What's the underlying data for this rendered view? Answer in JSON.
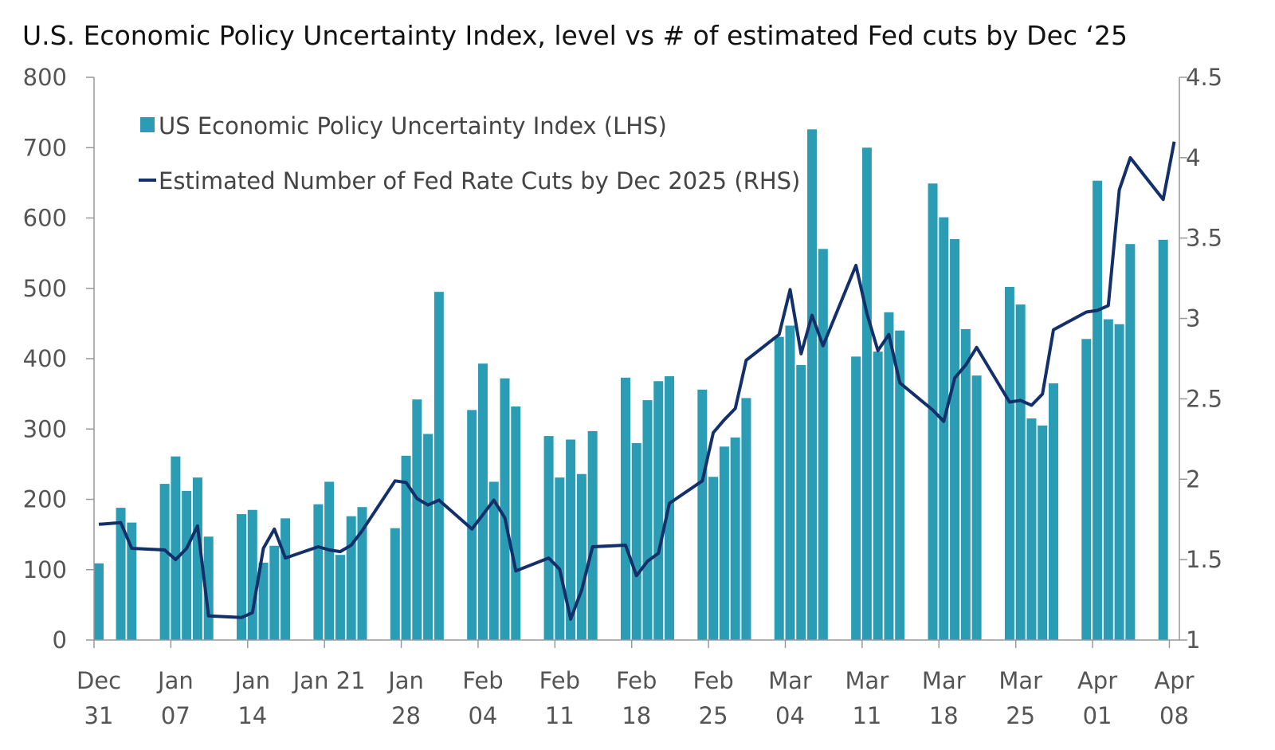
{
  "chart_data": {
    "type": "bar+line",
    "title": "U.S. Economic Policy Uncertainty Index, level vs # of estimated Fed cuts by Dec ‘25",
    "left_axis": {
      "ylim": [
        0,
        800
      ],
      "ticks": [
        "0",
        "100",
        "200",
        "300",
        "400",
        "500",
        "600",
        "700",
        "800"
      ]
    },
    "right_axis": {
      "ylim": [
        1,
        4.5
      ],
      "ticks": [
        "1",
        "1.5",
        "2",
        "2.5",
        "3",
        "3.5",
        "4",
        "4.5"
      ]
    },
    "x_ticks": [
      {
        "date": "2024-12-31",
        "lines": [
          "Dec",
          "31"
        ]
      },
      {
        "date": "2025-01-07",
        "lines": [
          "Jan",
          "07"
        ]
      },
      {
        "date": "2025-01-14",
        "lines": [
          "Jan",
          "14"
        ]
      },
      {
        "date": "2025-01-21",
        "lines": [
          "Jan 21",
          ""
        ]
      },
      {
        "date": "2025-01-28",
        "lines": [
          "Jan",
          "28"
        ]
      },
      {
        "date": "2025-02-04",
        "lines": [
          "Feb",
          "04"
        ]
      },
      {
        "date": "2025-02-11",
        "lines": [
          "Feb",
          "11"
        ]
      },
      {
        "date": "2025-02-18",
        "lines": [
          "Feb",
          "18"
        ]
      },
      {
        "date": "2025-02-25",
        "lines": [
          "Feb",
          "25"
        ]
      },
      {
        "date": "2025-03-04",
        "lines": [
          "Mar",
          "04"
        ]
      },
      {
        "date": "2025-03-11",
        "lines": [
          "Mar",
          "11"
        ]
      },
      {
        "date": "2025-03-18",
        "lines": [
          "Mar",
          "18"
        ]
      },
      {
        "date": "2025-03-25",
        "lines": [
          "Mar",
          "25"
        ]
      },
      {
        "date": "2025-04-01",
        "lines": [
          "Apr",
          "01"
        ]
      },
      {
        "date": "2025-04-08",
        "lines": [
          "Apr",
          "08"
        ]
      }
    ],
    "legend": {
      "bars": "US Economic Policy Uncertainty Index (LHS)",
      "line": "Estimated Number of Fed Rate Cuts by Dec 2025 (RHS)",
      "placement": "top-left"
    },
    "colors": {
      "bars": "#2a9db5",
      "line": "#13306b",
      "axis": "#999999"
    },
    "grid": false,
    "bars_series": {
      "name": "US Economic Policy Uncertainty Index (LHS)",
      "points": [
        [
          "2024-12-31",
          109
        ],
        [
          "2025-01-02",
          188
        ],
        [
          "2025-01-03",
          167
        ],
        [
          "2025-01-06",
          222
        ],
        [
          "2025-01-07",
          261
        ],
        [
          "2025-01-08",
          212
        ],
        [
          "2025-01-09",
          231
        ],
        [
          "2025-01-10",
          147
        ],
        [
          "2025-01-13",
          179
        ],
        [
          "2025-01-14",
          185
        ],
        [
          "2025-01-15",
          110
        ],
        [
          "2025-01-16",
          134
        ],
        [
          "2025-01-17",
          173
        ],
        [
          "2025-01-20",
          193
        ],
        [
          "2025-01-21",
          225
        ],
        [
          "2025-01-22",
          121
        ],
        [
          "2025-01-23",
          176
        ],
        [
          "2025-01-24",
          189
        ],
        [
          "2025-01-27",
          159
        ],
        [
          "2025-01-28",
          262
        ],
        [
          "2025-01-29",
          342
        ],
        [
          "2025-01-30",
          293
        ],
        [
          "2025-01-31",
          495
        ],
        [
          "2025-02-03",
          327
        ],
        [
          "2025-02-04",
          393
        ],
        [
          "2025-02-05",
          225
        ],
        [
          "2025-02-06",
          372
        ],
        [
          "2025-02-07",
          332
        ],
        [
          "2025-02-10",
          290
        ],
        [
          "2025-02-11",
          231
        ],
        [
          "2025-02-12",
          285
        ],
        [
          "2025-02-13",
          236
        ],
        [
          "2025-02-14",
          297
        ],
        [
          "2025-02-17",
          373
        ],
        [
          "2025-02-18",
          280
        ],
        [
          "2025-02-19",
          341
        ],
        [
          "2025-02-20",
          368
        ],
        [
          "2025-02-21",
          375
        ],
        [
          "2025-02-24",
          356
        ],
        [
          "2025-02-25",
          232
        ],
        [
          "2025-02-26",
          275
        ],
        [
          "2025-02-27",
          288
        ],
        [
          "2025-02-28",
          344
        ],
        [
          "2025-03-03",
          431
        ],
        [
          "2025-03-04",
          447
        ],
        [
          "2025-03-05",
          391
        ],
        [
          "2025-03-06",
          726
        ],
        [
          "2025-03-07",
          556
        ],
        [
          "2025-03-10",
          403
        ],
        [
          "2025-03-11",
          700
        ],
        [
          "2025-03-12",
          410
        ],
        [
          "2025-03-13",
          466
        ],
        [
          "2025-03-14",
          440
        ],
        [
          "2025-03-17",
          649
        ],
        [
          "2025-03-18",
          601
        ],
        [
          "2025-03-19",
          570
        ],
        [
          "2025-03-20",
          442
        ],
        [
          "2025-03-21",
          376
        ],
        [
          "2025-03-24",
          502
        ],
        [
          "2025-03-25",
          477
        ],
        [
          "2025-03-26",
          315
        ],
        [
          "2025-03-27",
          305
        ],
        [
          "2025-03-28",
          365
        ],
        [
          "2025-03-31",
          428
        ],
        [
          "2025-04-01",
          653
        ],
        [
          "2025-04-02",
          456
        ],
        [
          "2025-04-03",
          449
        ],
        [
          "2025-04-04",
          563
        ],
        [
          "2025-04-07",
          569
        ]
      ]
    },
    "line_series": {
      "name": "Estimated Number of Fed Rate Cuts by Dec 2025 (RHS)",
      "points": [
        [
          "2024-12-31",
          1.72
        ],
        [
          "2025-01-02",
          1.73
        ],
        [
          "2025-01-03",
          1.57
        ],
        [
          "2025-01-06",
          1.56
        ],
        [
          "2025-01-07",
          1.5
        ],
        [
          "2025-01-08",
          1.57
        ],
        [
          "2025-01-09",
          1.71
        ],
        [
          "2025-01-10",
          1.15
        ],
        [
          "2025-01-13",
          1.14
        ],
        [
          "2025-01-14",
          1.17
        ],
        [
          "2025-01-15",
          1.57
        ],
        [
          "2025-01-16",
          1.69
        ],
        [
          "2025-01-17",
          1.51
        ],
        [
          "2025-01-20",
          1.58
        ],
        [
          "2025-01-21",
          1.56
        ],
        [
          "2025-01-22",
          1.55
        ],
        [
          "2025-01-23",
          1.59
        ],
        [
          "2025-01-24",
          1.68
        ],
        [
          "2025-01-27",
          1.99
        ],
        [
          "2025-01-28",
          1.98
        ],
        [
          "2025-01-29",
          1.88
        ],
        [
          "2025-01-30",
          1.84
        ],
        [
          "2025-01-31",
          1.87
        ],
        [
          "2025-02-03",
          1.69
        ],
        [
          "2025-02-04",
          1.78
        ],
        [
          "2025-02-05",
          1.87
        ],
        [
          "2025-02-06",
          1.76
        ],
        [
          "2025-02-07",
          1.43
        ],
        [
          "2025-02-10",
          1.51
        ],
        [
          "2025-02-11",
          1.44
        ],
        [
          "2025-02-12",
          1.13
        ],
        [
          "2025-02-13",
          1.31
        ],
        [
          "2025-02-14",
          1.58
        ],
        [
          "2025-02-17",
          1.59
        ],
        [
          "2025-02-18",
          1.4
        ],
        [
          "2025-02-19",
          1.49
        ],
        [
          "2025-02-20",
          1.54
        ],
        [
          "2025-02-21",
          1.85
        ],
        [
          "2025-02-24",
          1.99
        ],
        [
          "2025-02-25",
          2.29
        ],
        [
          "2025-02-26",
          2.37
        ],
        [
          "2025-02-27",
          2.44
        ],
        [
          "2025-02-28",
          2.74
        ],
        [
          "2025-03-03",
          2.9
        ],
        [
          "2025-03-04",
          3.18
        ],
        [
          "2025-03-05",
          2.78
        ],
        [
          "2025-03-06",
          3.02
        ],
        [
          "2025-03-07",
          2.83
        ],
        [
          "2025-03-10",
          3.33
        ],
        [
          "2025-03-11",
          3.03
        ],
        [
          "2025-03-12",
          2.8
        ],
        [
          "2025-03-13",
          2.9
        ],
        [
          "2025-03-14",
          2.6
        ],
        [
          "2025-03-17",
          2.43
        ],
        [
          "2025-03-18",
          2.36
        ],
        [
          "2025-03-19",
          2.63
        ],
        [
          "2025-03-20",
          2.71
        ],
        [
          "2025-03-21",
          2.82
        ],
        [
          "2025-03-24",
          2.48
        ],
        [
          "2025-03-25",
          2.49
        ],
        [
          "2025-03-26",
          2.46
        ],
        [
          "2025-03-27",
          2.53
        ],
        [
          "2025-03-28",
          2.93
        ],
        [
          "2025-03-31",
          3.04
        ],
        [
          "2025-04-01",
          3.05
        ],
        [
          "2025-04-02",
          3.08
        ],
        [
          "2025-04-03",
          3.8
        ],
        [
          "2025-04-04",
          4.0
        ],
        [
          "2025-04-07",
          3.74
        ],
        [
          "2025-04-08",
          4.1
        ]
      ]
    }
  }
}
